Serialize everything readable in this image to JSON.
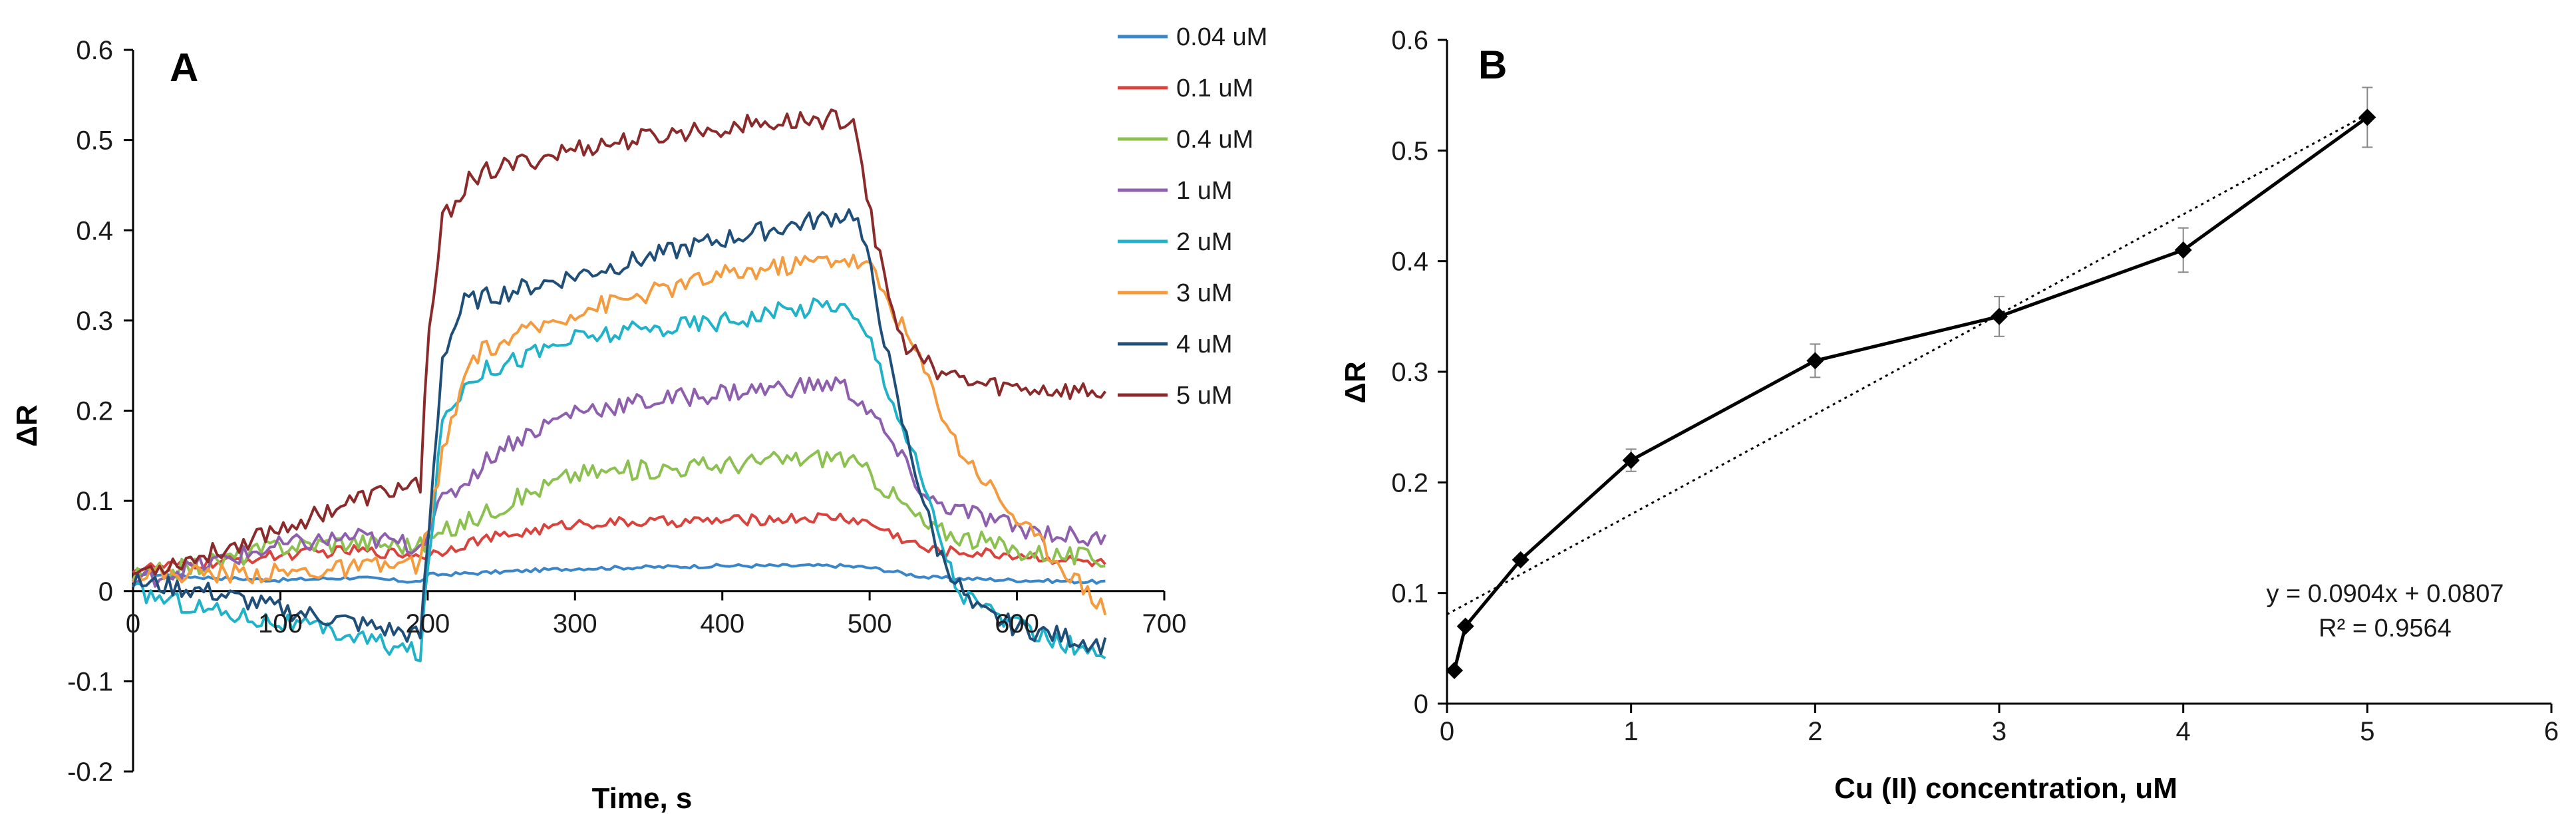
{
  "chart_data": [
    {
      "type": "line",
      "panel_label": "A",
      "xlabel": "Time, s",
      "ylabel": "ΔR",
      "xlim": [
        0,
        700
      ],
      "ylim": [
        -0.2,
        0.6
      ],
      "x_ticks": [
        "0",
        "100",
        "200",
        "300",
        "400",
        "500",
        "600",
        "700"
      ],
      "y_ticks": [
        "-0.2",
        "-0.1",
        "0",
        "0.1",
        "0.2",
        "0.3",
        "0.4",
        "0.5",
        "0.6"
      ],
      "legend_position": "right",
      "series": [
        {
          "name": "0.04 uM",
          "color": "#3a86c8",
          "points": [
            [
              0,
              0.02
            ],
            [
              50,
              0.015
            ],
            [
              100,
              0.012
            ],
            [
              150,
              0.015
            ],
            [
              195,
              0.01
            ],
            [
              200,
              0.018
            ],
            [
              220,
              0.019
            ],
            [
              300,
              0.025
            ],
            [
              400,
              0.028
            ],
            [
              480,
              0.028
            ],
            [
              500,
              0.026
            ],
            [
              540,
              0.015
            ],
            [
              600,
              0.012
            ],
            [
              660,
              0.01
            ]
          ]
        },
        {
          "name": "0.1 uM",
          "color": "#d9433e",
          "points": [
            [
              0,
              0.025
            ],
            [
              50,
              0.03
            ],
            [
              100,
              0.04
            ],
            [
              150,
              0.045
            ],
            [
              195,
              0.04
            ],
            [
              200,
              0.04
            ],
            [
              230,
              0.055
            ],
            [
              300,
              0.075
            ],
            [
              400,
              0.078
            ],
            [
              480,
              0.082
            ],
            [
              500,
              0.075
            ],
            [
              540,
              0.045
            ],
            [
              600,
              0.04
            ],
            [
              660,
              0.03
            ]
          ]
        },
        {
          "name": "0.4 uM",
          "color": "#8cc152",
          "points": [
            [
              0,
              0.015
            ],
            [
              50,
              0.03
            ],
            [
              100,
              0.05
            ],
            [
              150,
              0.055
            ],
            [
              195,
              0.05
            ],
            [
              205,
              0.06
            ],
            [
              250,
              0.095
            ],
            [
              300,
              0.13
            ],
            [
              400,
              0.14
            ],
            [
              480,
              0.15
            ],
            [
              500,
              0.13
            ],
            [
              540,
              0.07
            ],
            [
              600,
              0.045
            ],
            [
              660,
              0.035
            ]
          ]
        },
        {
          "name": "1 uM",
          "color": "#8e5fad",
          "points": [
            [
              0,
              0.01
            ],
            [
              50,
              0.03
            ],
            [
              100,
              0.05
            ],
            [
              150,
              0.06
            ],
            [
              195,
              0.05
            ],
            [
              205,
              0.09
            ],
            [
              250,
              0.16
            ],
            [
              300,
              0.2
            ],
            [
              400,
              0.22
            ],
            [
              480,
              0.23
            ],
            [
              500,
              0.2
            ],
            [
              540,
              0.1
            ],
            [
              600,
              0.07
            ],
            [
              660,
              0.055
            ]
          ]
        },
        {
          "name": "2 uM",
          "color": "#20b2c8",
          "points": [
            [
              0,
              0.0
            ],
            [
              50,
              -0.02
            ],
            [
              100,
              -0.035
            ],
            [
              150,
              -0.05
            ],
            [
              195,
              -0.07
            ],
            [
              200,
              0.02
            ],
            [
              210,
              0.19
            ],
            [
              230,
              0.24
            ],
            [
              300,
              0.28
            ],
            [
              400,
              0.3
            ],
            [
              480,
              0.32
            ],
            [
              500,
              0.28
            ],
            [
              530,
              0.15
            ],
            [
              560,
              0.0
            ],
            [
              600,
              -0.04
            ],
            [
              660,
              -0.075
            ]
          ]
        },
        {
          "name": "3  uM",
          "color": "#f49b3f",
          "points": [
            [
              0,
              0.02
            ],
            [
              50,
              0.02
            ],
            [
              100,
              0.02
            ],
            [
              150,
              0.025
            ],
            [
              195,
              0.03
            ],
            [
              210,
              0.15
            ],
            [
              230,
              0.26
            ],
            [
              300,
              0.31
            ],
            [
              400,
              0.35
            ],
            [
              480,
              0.37
            ],
            [
              500,
              0.36
            ],
            [
              530,
              0.27
            ],
            [
              560,
              0.16
            ],
            [
              600,
              0.08
            ],
            [
              660,
              -0.02
            ]
          ]
        },
        {
          "name": "4 uM",
          "color": "#1f4e79",
          "points": [
            [
              0,
              0.01
            ],
            [
              50,
              0.0
            ],
            [
              100,
              -0.02
            ],
            [
              150,
              -0.035
            ],
            [
              195,
              -0.05
            ],
            [
              200,
              0.05
            ],
            [
              210,
              0.26
            ],
            [
              225,
              0.32
            ],
            [
              300,
              0.35
            ],
            [
              400,
              0.39
            ],
            [
              490,
              0.42
            ],
            [
              500,
              0.36
            ],
            [
              520,
              0.2
            ],
            [
              545,
              0.05
            ],
            [
              570,
              -0.02
            ],
            [
              600,
              -0.04
            ],
            [
              660,
              -0.06
            ]
          ]
        },
        {
          "name": "5 uM",
          "color": "#8b2a2a",
          "points": [
            [
              0,
              0.02
            ],
            [
              50,
              0.04
            ],
            [
              100,
              0.07
            ],
            [
              150,
              0.1
            ],
            [
              195,
              0.12
            ],
            [
              200,
              0.27
            ],
            [
              210,
              0.41
            ],
            [
              230,
              0.46
            ],
            [
              300,
              0.49
            ],
            [
              400,
              0.515
            ],
            [
              490,
              0.525
            ],
            [
              500,
              0.42
            ],
            [
              520,
              0.28
            ],
            [
              540,
              0.25
            ],
            [
              570,
              0.23
            ],
            [
              600,
              0.225
            ],
            [
              660,
              0.22
            ]
          ]
        }
      ]
    },
    {
      "type": "scatter",
      "panel_label": "B",
      "xlabel": "Cu (II) concentration, uM",
      "ylabel": "ΔR",
      "xlim": [
        0,
        6
      ],
      "ylim": [
        0,
        0.6
      ],
      "x_ticks": [
        "0",
        "1",
        "2",
        "3",
        "4",
        "5",
        "6"
      ],
      "y_ticks": [
        "0",
        "0.1",
        "0.2",
        "0.3",
        "0.4",
        "0.5",
        "0.6"
      ],
      "x": [
        0.04,
        0.1,
        0.4,
        1,
        2,
        3,
        4,
        5
      ],
      "y": [
        0.03,
        0.07,
        0.13,
        0.22,
        0.31,
        0.35,
        0.41,
        0.53
      ],
      "error": [
        0.0,
        0.0,
        0.0,
        0.01,
        0.015,
        0.018,
        0.02,
        0.027
      ],
      "trendline": {
        "slope": 0.0904,
        "intercept": 0.0807,
        "x_range": [
          0,
          5
        ]
      },
      "equation": "y = 0.0904x + 0.0807",
      "r_squared": "R² = 0.9564"
    }
  ]
}
